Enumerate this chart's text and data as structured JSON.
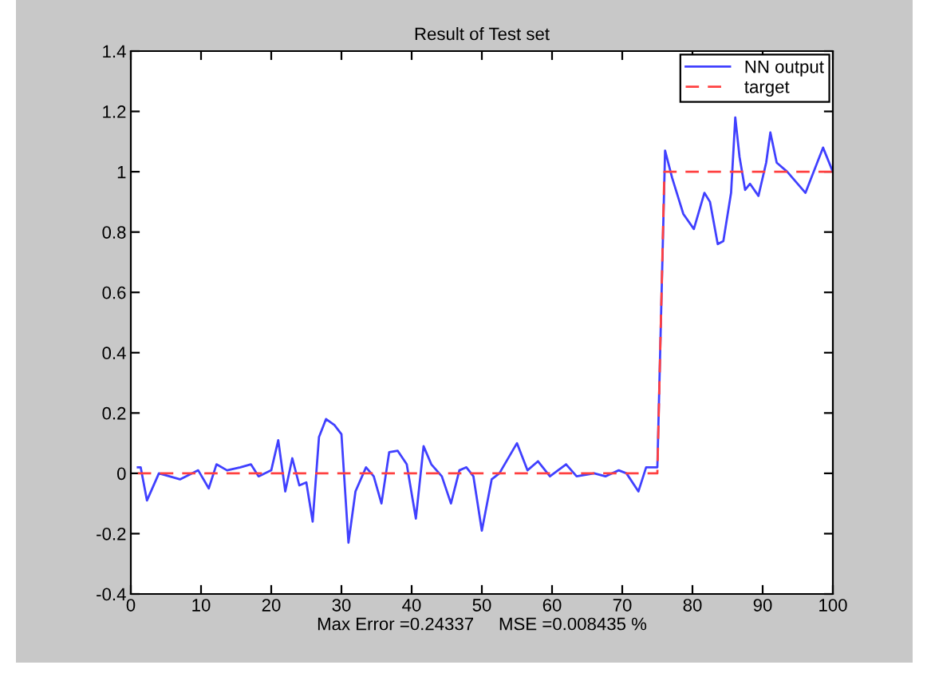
{
  "chart_data": {
    "type": "line",
    "title": "Result of Test set",
    "xlabel": "Max Error =0.24337     MSE =0.008435 %",
    "series": [
      {
        "name": "NN output",
        "color": "#4040ff",
        "line_style": "solid",
        "x": [
          1,
          1.4,
          2.3,
          4,
          7,
          9.6,
          11.1,
          12.2,
          13.7,
          15.6,
          17.1,
          18.2,
          20,
          21,
          22,
          23,
          24,
          25,
          25.9,
          26.8,
          27.8,
          29,
          30,
          31,
          32,
          33.5,
          34.6,
          35.7,
          36.8,
          38,
          39.3,
          40.6,
          41.7,
          42.8,
          44.3,
          45.6,
          46.8,
          47.8,
          48.8,
          50,
          51.4,
          52.5,
          55,
          56.5,
          58,
          59.7,
          62,
          63.5,
          66,
          67.6,
          69.5,
          70.6,
          72.3,
          73.4,
          75,
          76.1,
          77.1,
          78.7,
          80.2,
          81.7,
          82.5,
          83.6,
          84.4,
          85.5,
          86.1,
          86.7,
          87.5,
          88.2,
          89.4,
          90.5,
          91.1,
          92,
          93.5,
          96.1,
          98.6,
          100
        ],
        "values": [
          0.02,
          0.02,
          -0.09,
          0,
          -0.02,
          0.01,
          -0.05,
          0.03,
          0.01,
          0.02,
          0.03,
          -0.01,
          0.01,
          0.11,
          -0.06,
          0.05,
          -0.04,
          -0.03,
          -0.16,
          0.12,
          0.18,
          0.16,
          0.13,
          -0.23,
          -0.06,
          0.02,
          -0.01,
          -0.1,
          0.07,
          0.075,
          0.03,
          -0.15,
          0.09,
          0.03,
          -0.01,
          -0.1,
          0.01,
          0.02,
          -0.01,
          -0.19,
          -0.02,
          0,
          0.1,
          0.01,
          0.04,
          -0.01,
          0.03,
          -0.01,
          0,
          -0.01,
          0.01,
          0,
          -0.06,
          0.02,
          0.02,
          1.07,
          0.98,
          0.86,
          0.81,
          0.93,
          0.9,
          0.76,
          0.77,
          0.93,
          1.18,
          1.05,
          0.94,
          0.96,
          0.92,
          1.03,
          1.13,
          1.03,
          1.0,
          0.93,
          1.08,
          1.0
        ]
      },
      {
        "name": "target",
        "color": "#ff4040",
        "line_style": "dashed",
        "x": [
          1,
          75,
          76,
          100
        ],
        "values": [
          0,
          0,
          1,
          1
        ]
      }
    ],
    "xlim": [
      0,
      100
    ],
    "xticks": [
      0,
      10,
      20,
      30,
      40,
      50,
      60,
      70,
      80,
      90,
      100
    ],
    "ylim": [
      -0.4,
      1.4
    ],
    "yticks": [
      -0.4,
      -0.2,
      0,
      0.2,
      0.4,
      0.6,
      0.8,
      1,
      1.2,
      1.4
    ],
    "legend": "top right",
    "grid": false,
    "marker": "none"
  }
}
